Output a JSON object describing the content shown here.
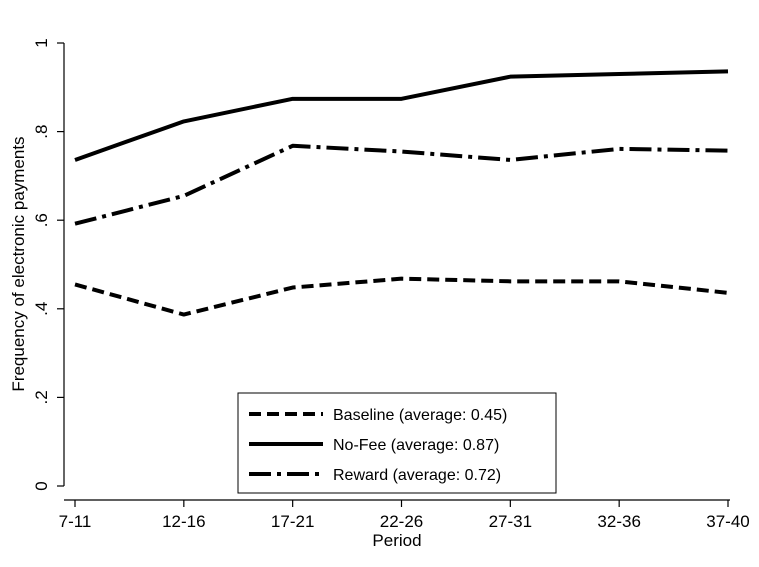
{
  "chart_data": {
    "type": "line",
    "title": "",
    "xlabel": "Period",
    "ylabel": "Frequency of electronic payments",
    "categories": [
      "7-11",
      "12-16",
      "17-21",
      "22-26",
      "27-31",
      "32-36",
      "37-40"
    ],
    "ylim": [
      0,
      1
    ],
    "yticks": [
      0,
      0.2,
      0.4,
      0.6,
      0.8,
      1
    ],
    "ytick_labels": [
      "0",
      ".2",
      ".4",
      ".6",
      ".8",
      "1"
    ],
    "grid": false,
    "legend_position": "bottom-center",
    "series": [
      {
        "name": "Baseline (average: 0.45)",
        "style": "dashed",
        "values": [
          0.455,
          0.387,
          0.448,
          0.468,
          0.462,
          0.462,
          0.436
        ]
      },
      {
        "name": "No-Fee (average: 0.87)",
        "style": "solid",
        "values": [
          0.736,
          0.823,
          0.874,
          0.874,
          0.924,
          0.93,
          0.936
        ]
      },
      {
        "name": "Reward (average: 0.72)",
        "style": "dash-dot",
        "values": [
          0.592,
          0.655,
          0.768,
          0.755,
          0.736,
          0.761,
          0.757
        ]
      }
    ]
  }
}
